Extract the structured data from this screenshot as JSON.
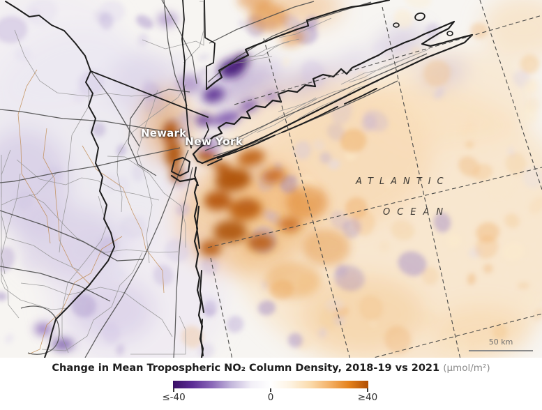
{
  "map": {
    "labels": {
      "newark": "Newark",
      "new_york": "New York",
      "ocean_line1": "ATLANTIC",
      "ocean_line2": "OCEAN"
    },
    "scale_bar": {
      "label": "50 km"
    }
  },
  "legend": {
    "caption_main": "Change in Mean Tropospheric NO₂ Column Density, 2018-19 vs 2021",
    "caption_unit": "(μmol/m²)",
    "ticks": [
      "≤-40",
      "0",
      "≥40"
    ],
    "gradient_stops": [
      "#3a1066",
      "#5c2d96",
      "#8a68b8",
      "#c4b8dc",
      "#f2eff7",
      "#ffffff",
      "#fdf3e2",
      "#fbdcae",
      "#f4b269",
      "#e5821c",
      "#b04e03"
    ],
    "colors": {
      "negative_extreme": "#3a1066",
      "zero": "#ffffff",
      "positive_extreme": "#b04e03"
    }
  }
}
